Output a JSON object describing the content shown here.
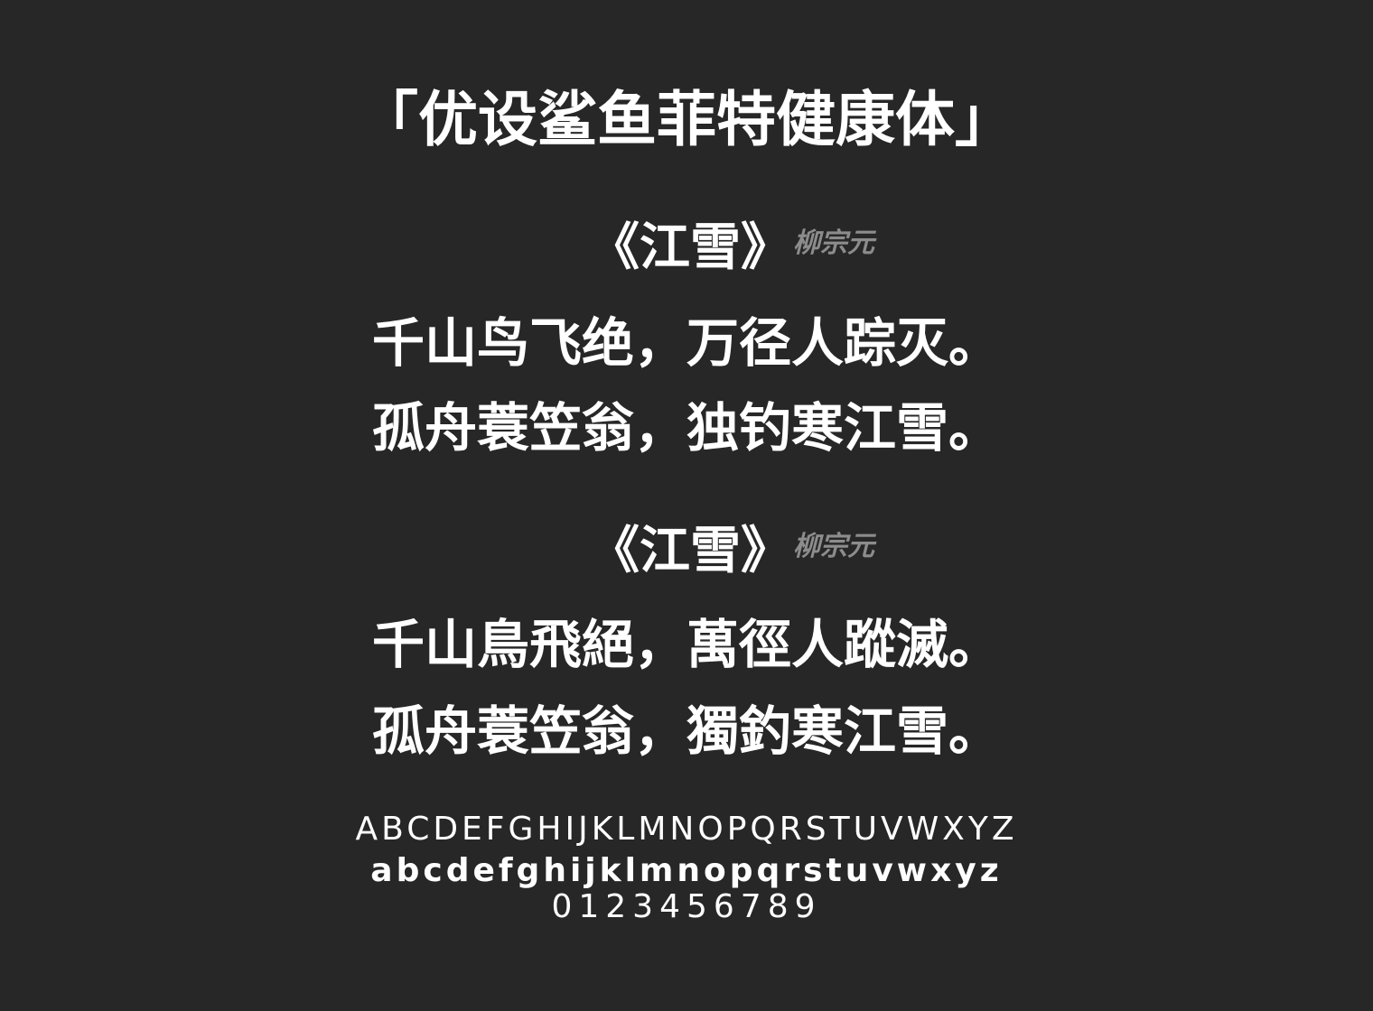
{
  "font_name": "「优设鲨鱼菲特健康体」",
  "poems": [
    {
      "title": "《江雪》",
      "author": "柳宗元",
      "lines": [
        "千山鸟飞绝，万径人踪灭。",
        "孤舟蓑笠翁，独钓寒江雪。"
      ]
    },
    {
      "title": "《江雪》",
      "author": "柳宗元",
      "lines": [
        "千山鳥飛絕，萬徑人蹤滅。",
        "孤舟蓑笠翁，獨釣寒江雪。"
      ]
    }
  ],
  "glyphs": {
    "uppercase": "ABCDEFGHIJKLMNOPQRSTUVWXYZ",
    "lowercase": "abcdefghijklmnopqrstuvwxyz",
    "digits": "0123456789"
  },
  "colors": {
    "background": "#272727",
    "text": "#ffffff",
    "author": "#8c8c8c"
  }
}
